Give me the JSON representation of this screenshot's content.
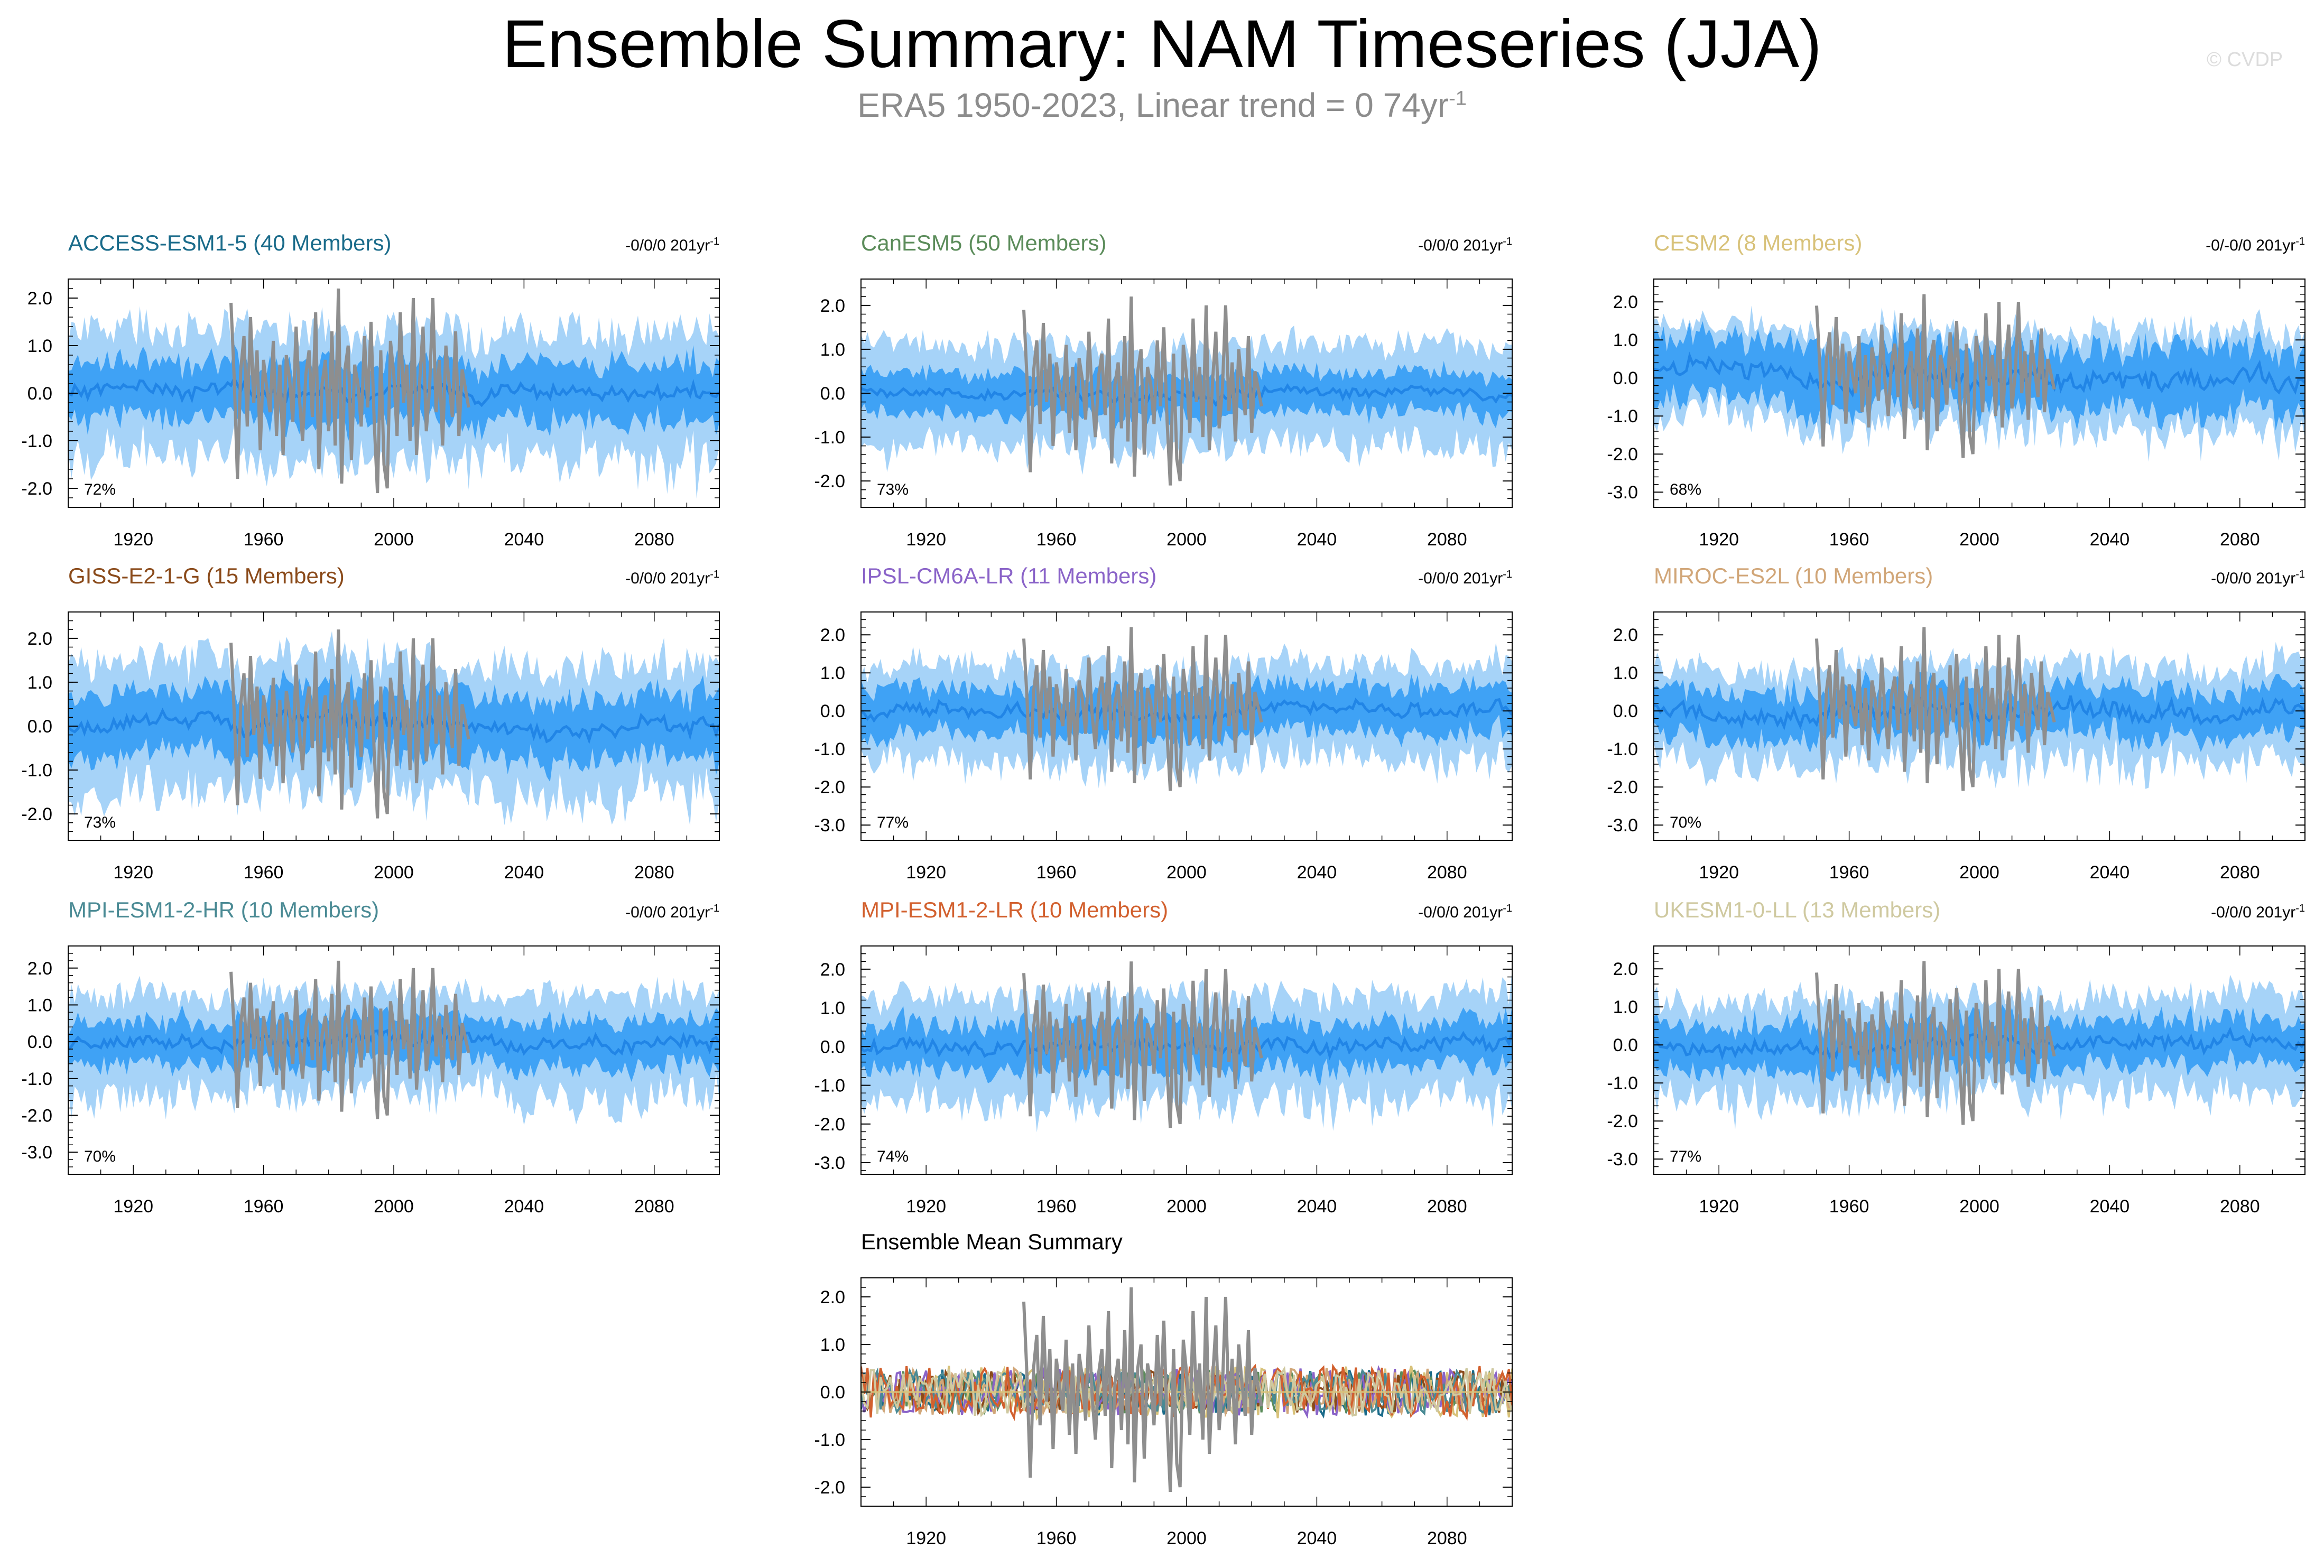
{
  "header": {
    "title": "Ensemble Summary: NAM Timeseries (JJA)",
    "subtitle": "ERA5 1950-2023, Linear trend = 0 74yr",
    "subtitle_exponent": "-1",
    "watermark": "© CVDP"
  },
  "colors": {
    "band_outer": "#a6d3f8",
    "band_inner": "#3fa2f5",
    "ensemble_mean": "#2185e6",
    "observations": "#8e8e8e"
  },
  "observations": {
    "name": "ERA5",
    "years": [
      1950,
      2023
    ],
    "values": [
      1.9,
      0.3,
      -1.8,
      0.5,
      1.2,
      -0.7,
      1.6,
      -0.2,
      0.9,
      -1.2,
      0.7,
      0.1,
      -0.4,
      1.1,
      -0.9,
      0.6,
      -1.3,
      0.8,
      0.3,
      -0.6,
      1.4,
      -0.1,
      -1.0,
      0.4,
      0.9,
      -0.5,
      1.7,
      -1.6,
      0.2,
      0.7,
      -0.8,
      1.3,
      -1.1,
      2.2,
      -1.9,
      0.5,
      1.0,
      -1.4,
      0.6,
      0.2,
      -0.7,
      1.2,
      -0.3,
      1.5,
      -0.6,
      -2.1,
      0.9,
      -1.5,
      -2.0,
      1.1,
      0.4,
      -0.9,
      1.7,
      -0.2,
      0.6,
      -1.0,
      2.0,
      -1.3,
      0.3,
      1.4,
      -0.8,
      0.1,
      2.0,
      -0.4,
      0.7,
      -1.1,
      1.0,
      0.2,
      -0.5,
      1.3,
      -0.9,
      0.5,
      0.1,
      -0.3
    ]
  },
  "chart_data": [
    {
      "type": "area",
      "title": "ACCESS-ESM1-5 (40 Members)",
      "title_color": "#1a6b8a",
      "trend_text": "-0/0/0 201yr",
      "trend_exponent": "-1",
      "pct_label": "72%",
      "x_range": [
        1900,
        2100
      ],
      "ylim": [
        -2.4,
        2.4
      ],
      "yticks": [
        2.0,
        1.0,
        0.0,
        -1.0,
        -2.0
      ],
      "ytick_labels": [
        "2.0",
        "1.0",
        "0.0",
        "-1.0",
        "-2.0"
      ],
      "xticks": [
        1920,
        1960,
        2000,
        2040,
        2080
      ],
      "xtick_labels": [
        "1920",
        "1960",
        "2000",
        "2040",
        "2080"
      ],
      "outer_halfwidth": 1.3,
      "inner_halfwidth": 0.6,
      "mean_amplitude": 0.25,
      "seed": 11
    },
    {
      "type": "area",
      "title": "CanESM5 (50 Members)",
      "title_color": "#5b8c5a",
      "trend_text": "-0/0/0 201yr",
      "trend_exponent": "-1",
      "pct_label": "73%",
      "x_range": [
        1900,
        2100
      ],
      "ylim": [
        -2.6,
        2.6
      ],
      "yticks": [
        2.0,
        1.0,
        0.0,
        -1.0,
        -2.0
      ],
      "ytick_labels": [
        "2.0",
        "1.0",
        "0.0",
        "-1.0",
        "-2.0"
      ],
      "xticks": [
        1920,
        1960,
        2000,
        2040,
        2080
      ],
      "xtick_labels": [
        "1920",
        "1960",
        "2000",
        "2040",
        "2080"
      ],
      "outer_halfwidth": 1.1,
      "inner_halfwidth": 0.45,
      "mean_amplitude": 0.2,
      "seed": 23
    },
    {
      "type": "area",
      "title": "CESM2 (8 Members)",
      "title_color": "#d8c27a",
      "trend_text": "-0/-0/0 201yr",
      "trend_exponent": "-1",
      "pct_label": "68%",
      "x_range": [
        1900,
        2100
      ],
      "ylim": [
        -3.4,
        2.6
      ],
      "yticks": [
        2.0,
        1.0,
        0.0,
        -1.0,
        -2.0,
        -3.0
      ],
      "ytick_labels": [
        "2.0",
        "1.0",
        "0.0",
        "-1.0",
        "-2.0",
        "-3.0"
      ],
      "xticks": [
        1920,
        1960,
        2000,
        2040,
        2080
      ],
      "xtick_labels": [
        "1920",
        "1960",
        "2000",
        "2040",
        "2080"
      ],
      "outer_halfwidth": 1.2,
      "inner_halfwidth": 0.8,
      "mean_amplitude": 0.4,
      "seed": 37
    },
    {
      "type": "area",
      "title": "GISS-E2-1-G (15 Members)",
      "title_color": "#8a4a1a",
      "trend_text": "-0/0/0 201yr",
      "trend_exponent": "-1",
      "pct_label": "73%",
      "x_range": [
        1900,
        2100
      ],
      "ylim": [
        -2.6,
        2.6
      ],
      "yticks": [
        2.0,
        1.0,
        0.0,
        -1.0,
        -2.0
      ],
      "ytick_labels": [
        "2.0",
        "1.0",
        "0.0",
        "-1.0",
        "-2.0"
      ],
      "xticks": [
        1920,
        1960,
        2000,
        2040,
        2080
      ],
      "xtick_labels": [
        "1920",
        "1960",
        "2000",
        "2040",
        "2080"
      ],
      "outer_halfwidth": 1.4,
      "inner_halfwidth": 0.7,
      "mean_amplitude": 0.3,
      "seed": 41
    },
    {
      "type": "area",
      "title": "IPSL-CM6A-LR (11 Members)",
      "title_color": "#8a63c8",
      "trend_text": "-0/0/0 201yr",
      "trend_exponent": "-1",
      "pct_label": "77%",
      "x_range": [
        1900,
        2100
      ],
      "ylim": [
        -3.4,
        2.6
      ],
      "yticks": [
        2.0,
        1.0,
        0.0,
        -1.0,
        -2.0,
        -3.0
      ],
      "ytick_labels": [
        "2.0",
        "1.0",
        "0.0",
        "-1.0",
        "-2.0",
        "-3.0"
      ],
      "xticks": [
        1920,
        1960,
        2000,
        2040,
        2080
      ],
      "xtick_labels": [
        "1920",
        "1960",
        "2000",
        "2040",
        "2080"
      ],
      "outer_halfwidth": 1.2,
      "inner_halfwidth": 0.6,
      "mean_amplitude": 0.3,
      "seed": 53
    },
    {
      "type": "area",
      "title": "MIROC-ES2L (10 Members)",
      "title_color": "#d1a678",
      "trend_text": "-0/0/0 201yr",
      "trend_exponent": "-1",
      "pct_label": "70%",
      "x_range": [
        1900,
        2100
      ],
      "ylim": [
        -3.4,
        2.6
      ],
      "yticks": [
        2.0,
        1.0,
        0.0,
        -1.0,
        -2.0,
        -3.0
      ],
      "ytick_labels": [
        "2.0",
        "1.0",
        "0.0",
        "-1.0",
        "-2.0",
        "-3.0"
      ],
      "xticks": [
        1920,
        1960,
        2000,
        2040,
        2080
      ],
      "xtick_labels": [
        "1920",
        "1960",
        "2000",
        "2040",
        "2080"
      ],
      "outer_halfwidth": 1.2,
      "inner_halfwidth": 0.6,
      "mean_amplitude": 0.35,
      "seed": 67
    },
    {
      "type": "area",
      "title": "MPI-ESM1-2-HR (10 Members)",
      "title_color": "#4a8a94",
      "trend_text": "-0/0/0 201yr",
      "trend_exponent": "-1",
      "pct_label": "70%",
      "x_range": [
        1900,
        2100
      ],
      "ylim": [
        -3.6,
        2.6
      ],
      "yticks": [
        2.0,
        1.0,
        0.0,
        -1.0,
        -2.0,
        -3.0
      ],
      "ytick_labels": [
        "2.0",
        "1.0",
        "0.0",
        "-1.0",
        "-2.0",
        "-3.0"
      ],
      "xticks": [
        1920,
        1960,
        2000,
        2040,
        2080
      ],
      "xtick_labels": [
        "1920",
        "1960",
        "2000",
        "2040",
        "2080"
      ],
      "outer_halfwidth": 1.3,
      "inner_halfwidth": 0.6,
      "mean_amplitude": 0.3,
      "seed": 71
    },
    {
      "type": "area",
      "title": "MPI-ESM1-2-LR (10 Members)",
      "title_color": "#d2602e",
      "trend_text": "-0/0/0 201yr",
      "trend_exponent": "-1",
      "pct_label": "74%",
      "x_range": [
        1900,
        2100
      ],
      "ylim": [
        -3.3,
        2.6
      ],
      "yticks": [
        2.0,
        1.0,
        0.0,
        -1.0,
        -2.0,
        -3.0
      ],
      "ytick_labels": [
        "2.0",
        "1.0",
        "0.0",
        "-1.0",
        "-2.0",
        "-3.0"
      ],
      "xticks": [
        1920,
        1960,
        2000,
        2040,
        2080
      ],
      "xtick_labels": [
        "1920",
        "1960",
        "2000",
        "2040",
        "2080"
      ],
      "outer_halfwidth": 1.3,
      "inner_halfwidth": 0.6,
      "mean_amplitude": 0.3,
      "seed": 83
    },
    {
      "type": "area",
      "title": "UKESM1-0-LL (13 Members)",
      "title_color": "#cfc9a0",
      "trend_text": "-0/0/0 201yr",
      "trend_exponent": "-1",
      "pct_label": "77%",
      "x_range": [
        1900,
        2100
      ],
      "ylim": [
        -3.4,
        2.6
      ],
      "yticks": [
        2.0,
        1.0,
        0.0,
        -1.0,
        -2.0,
        -3.0
      ],
      "ytick_labels": [
        "2.0",
        "1.0",
        "0.0",
        "-1.0",
        "-2.0",
        "-3.0"
      ],
      "xticks": [
        1920,
        1960,
        2000,
        2040,
        2080
      ],
      "xtick_labels": [
        "1920",
        "1960",
        "2000",
        "2040",
        "2080"
      ],
      "outer_halfwidth": 1.2,
      "inner_halfwidth": 0.6,
      "mean_amplitude": 0.3,
      "seed": 97
    },
    {
      "type": "line",
      "title": "Ensemble Mean Summary",
      "title_color": "#000000",
      "x_range": [
        1900,
        2100
      ],
      "ylim": [
        -2.4,
        2.4
      ],
      "yticks": [
        2.0,
        1.0,
        0.0,
        -1.0,
        -2.0
      ],
      "ytick_labels": [
        "2.0",
        "1.0",
        "0.0",
        "-1.0",
        "-2.0"
      ],
      "xticks": [
        1920,
        1960,
        2000,
        2040,
        2080
      ],
      "xtick_labels": [
        "1920",
        "1960",
        "2000",
        "2040",
        "2080"
      ],
      "series": [
        {
          "name": "ACCESS-ESM1-5",
          "color": "#1a6b8a",
          "amplitude": 0.5,
          "seed": 101
        },
        {
          "name": "CanESM5",
          "color": "#5b8c5a",
          "amplitude": 0.45,
          "seed": 102
        },
        {
          "name": "CESM2",
          "color": "#d8c27a",
          "amplitude": 0.55,
          "seed": 103
        },
        {
          "name": "GISS-E2-1-G",
          "color": "#8a4a1a",
          "amplitude": 0.45,
          "seed": 104
        },
        {
          "name": "IPSL-CM6A-LR",
          "color": "#8a63c8",
          "amplitude": 0.5,
          "seed": 105
        },
        {
          "name": "MIROC-ES2L",
          "color": "#d1a678",
          "amplitude": 0.5,
          "seed": 106
        },
        {
          "name": "MPI-ESM1-2-HR",
          "color": "#4a8a94",
          "amplitude": 0.45,
          "seed": 107
        },
        {
          "name": "MPI-ESM1-2-LR",
          "color": "#d2602e",
          "amplitude": 0.55,
          "seed": 108
        },
        {
          "name": "UKESM1-0-LL",
          "color": "#cfc9a0",
          "amplitude": 0.5,
          "seed": 109
        }
      ]
    }
  ]
}
